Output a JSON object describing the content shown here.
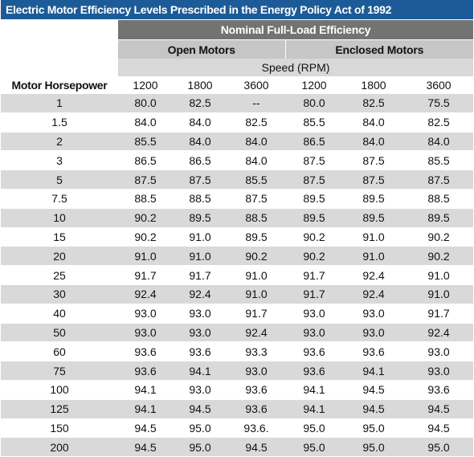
{
  "table": {
    "title": "Electric Motor Efficiency Levels Prescribed in the Energy Policy Act of 1992",
    "group_header": "Nominal Full-Load Efficiency",
    "subgroups": [
      "Open Motors",
      "Enclosed Motors"
    ],
    "speed_label": "Speed (RPM)",
    "row_header": "Motor Horsepower",
    "speeds": [
      "1200",
      "1800",
      "3600",
      "1200",
      "1800",
      "3600"
    ],
    "rows": [
      {
        "hp": "1",
        "values": [
          "80.0",
          "82.5",
          "--",
          "80.0",
          "82.5",
          "75.5"
        ]
      },
      {
        "hp": "1.5",
        "values": [
          "84.0",
          "84.0",
          "82.5",
          "85.5",
          "84.0",
          "82.5"
        ]
      },
      {
        "hp": "2",
        "values": [
          "85.5",
          "84.0",
          "84.0",
          "86.5",
          "84.0",
          "84.0"
        ]
      },
      {
        "hp": "3",
        "values": [
          "86.5",
          "86.5",
          "84.0",
          "87.5",
          "87.5",
          "85.5"
        ]
      },
      {
        "hp": "5",
        "values": [
          "87.5",
          "87.5",
          "85.5",
          "87.5",
          "87.5",
          "87.5"
        ]
      },
      {
        "hp": "7.5",
        "values": [
          "88.5",
          "88.5",
          "87.5",
          "89.5",
          "89.5",
          "88.5"
        ]
      },
      {
        "hp": "10",
        "values": [
          "90.2",
          "89.5",
          "88.5",
          "89.5",
          "89.5",
          "89.5"
        ]
      },
      {
        "hp": "15",
        "values": [
          "90.2",
          "91.0",
          "89.5",
          "90.2",
          "91.0",
          "90.2"
        ]
      },
      {
        "hp": "20",
        "values": [
          "91.0",
          "91.0",
          "90.2",
          "90.2",
          "91.0",
          "90.2"
        ]
      },
      {
        "hp": "25",
        "values": [
          "91.7",
          "91.7",
          "91.0",
          "91.7",
          "92.4",
          "91.0"
        ]
      },
      {
        "hp": "30",
        "values": [
          "92.4",
          "92.4",
          "91.0",
          "91.7",
          "92.4",
          "91.0"
        ]
      },
      {
        "hp": "40",
        "values": [
          "93.0",
          "93.0",
          "91.7",
          "93.0",
          "93.0",
          "91.7"
        ]
      },
      {
        "hp": "50",
        "values": [
          "93.0",
          "93.0",
          "92.4",
          "93.0",
          "93.0",
          "92.4"
        ]
      },
      {
        "hp": "60",
        "values": [
          "93.6",
          "93.6",
          "93.3",
          "93.6",
          "93.6",
          "93.0"
        ]
      },
      {
        "hp": "75",
        "values": [
          "93.6",
          "94.1",
          "93.0",
          "93.6",
          "94.1",
          "93.0"
        ]
      },
      {
        "hp": "100",
        "values": [
          "94.1",
          "93.0",
          "93.6",
          "94.1",
          "94.5",
          "93.6"
        ]
      },
      {
        "hp": "125",
        "values": [
          "94.1",
          "94.5",
          "93.6",
          "94.1",
          "94.5",
          "94.5"
        ]
      },
      {
        "hp": "150",
        "values": [
          "94.5",
          "95.0",
          "93.6.",
          "95.0",
          "95.0",
          "94.5"
        ]
      },
      {
        "hp": "200",
        "values": [
          "94.5",
          "95.0",
          "94.5",
          "95.0",
          "95.0",
          "95.0"
        ]
      }
    ]
  }
}
